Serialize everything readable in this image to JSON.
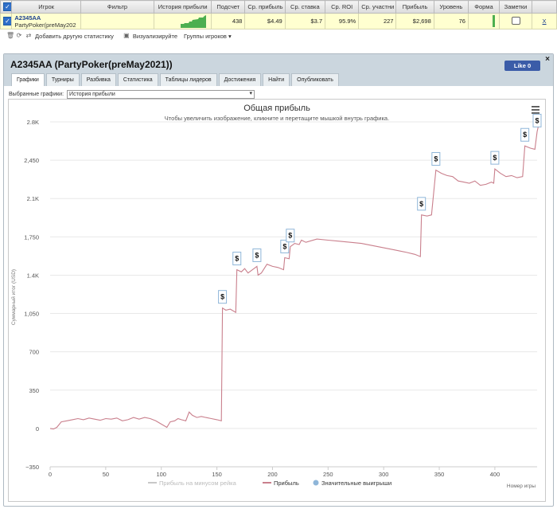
{
  "table": {
    "headers": [
      "Игрок",
      "Фильтр",
      "История прибыли",
      "Подсчет",
      "Ср. прибыль",
      "Ср. ставка",
      "Ср. ROI",
      "Ср. участни",
      "Прибыль",
      "Уровень",
      "Форма",
      "Заметки"
    ],
    "row": {
      "player": "A2345AA",
      "site": "PartyPoker(preMay202",
      "count": "438",
      "avg_profit": "$4.49",
      "avg_stake": "$3.7",
      "avg_roi": "95.9%",
      "avg_entrants": "227",
      "profit": "$2,698",
      "level": "76",
      "remove": "X"
    }
  },
  "toolbar": {
    "add_stat": "Добавить другую статистику",
    "visualize": "Визуализируйте",
    "groups": "Группы игроков"
  },
  "panel": {
    "title": "A2345AA (PartyPoker(preMay2021))",
    "like": "Like 0",
    "close": "×",
    "tabs": [
      "Графики",
      "Турниры",
      "Разбивка",
      "Статистика",
      "Таблицы лидеров",
      "Достижения",
      "Найти",
      "Опубликовать"
    ],
    "selected_label": "Выбранные графики:",
    "selected_value": "История прибыли"
  },
  "chart_data": {
    "type": "line",
    "title": "Общая прибыль",
    "subtitle": "Чтобы увеличить изображение, кликните и перетащите мышкой внутрь графика.",
    "xlabel": "Номер игры",
    "ylabel": "Суммарный итог (USD)",
    "xlim": [
      0,
      438
    ],
    "ylim": [
      -350,
      2800
    ],
    "x_ticks": [
      0,
      50,
      100,
      150,
      200,
      250,
      300,
      350,
      400
    ],
    "y_ticks": [
      -350,
      0,
      350,
      700,
      1050,
      1400,
      1750,
      2100,
      2450,
      2800
    ],
    "y_tick_labels": [
      "−350",
      "0",
      "350",
      "700",
      "1,050",
      "1.4K",
      "1,750",
      "2.1K",
      "2,450",
      "2.8K"
    ],
    "legend": [
      "Прибыль на минусом рейка",
      "Прибыль",
      "Значительные выигрыши"
    ],
    "legend_position": "bottom",
    "series": [
      {
        "name": "Прибыль",
        "color": "#c97f8c",
        "points": [
          [
            0,
            0
          ],
          [
            3,
            -5
          ],
          [
            6,
            10
          ],
          [
            10,
            60
          ],
          [
            15,
            70
          ],
          [
            20,
            80
          ],
          [
            25,
            90
          ],
          [
            30,
            80
          ],
          [
            35,
            95
          ],
          [
            40,
            85
          ],
          [
            45,
            75
          ],
          [
            50,
            90
          ],
          [
            55,
            85
          ],
          [
            60,
            95
          ],
          [
            65,
            70
          ],
          [
            70,
            80
          ],
          [
            75,
            100
          ],
          [
            80,
            85
          ],
          [
            85,
            100
          ],
          [
            90,
            90
          ],
          [
            95,
            70
          ],
          [
            100,
            40
          ],
          [
            105,
            10
          ],
          [
            108,
            60
          ],
          [
            112,
            70
          ],
          [
            115,
            90
          ],
          [
            118,
            80
          ],
          [
            122,
            70
          ],
          [
            125,
            150
          ],
          [
            128,
            120
          ],
          [
            132,
            100
          ],
          [
            136,
            110
          ],
          [
            140,
            100
          ],
          [
            145,
            90
          ],
          [
            150,
            80
          ],
          [
            154,
            70
          ],
          [
            155,
            1100
          ],
          [
            158,
            1080
          ],
          [
            162,
            1090
          ],
          [
            167,
            1060
          ],
          [
            168,
            1450
          ],
          [
            172,
            1430
          ],
          [
            175,
            1460
          ],
          [
            178,
            1420
          ],
          [
            182,
            1450
          ],
          [
            186,
            1480
          ],
          [
            187,
            1400
          ],
          [
            190,
            1420
          ],
          [
            195,
            1500
          ],
          [
            200,
            1480
          ],
          [
            205,
            1470
          ],
          [
            210,
            1450
          ],
          [
            211,
            1560
          ],
          [
            215,
            1550
          ],
          [
            216,
            1660
          ],
          [
            220,
            1690
          ],
          [
            224,
            1680
          ],
          [
            226,
            1720
          ],
          [
            230,
            1700
          ],
          [
            240,
            1730
          ],
          [
            250,
            1720
          ],
          [
            260,
            1710
          ],
          [
            270,
            1700
          ],
          [
            280,
            1690
          ],
          [
            290,
            1670
          ],
          [
            300,
            1650
          ],
          [
            310,
            1630
          ],
          [
            320,
            1610
          ],
          [
            328,
            1590
          ],
          [
            333,
            1570
          ],
          [
            334,
            1950
          ],
          [
            339,
            1940
          ],
          [
            343,
            1950
          ],
          [
            347,
            2360
          ],
          [
            352,
            2330
          ],
          [
            357,
            2310
          ],
          [
            362,
            2300
          ],
          [
            367,
            2260
          ],
          [
            372,
            2250
          ],
          [
            377,
            2240
          ],
          [
            382,
            2260
          ],
          [
            387,
            2220
          ],
          [
            392,
            2230
          ],
          [
            397,
            2250
          ],
          [
            399,
            2240
          ],
          [
            400,
            2370
          ],
          [
            405,
            2330
          ],
          [
            410,
            2300
          ],
          [
            415,
            2310
          ],
          [
            420,
            2290
          ],
          [
            425,
            2300
          ],
          [
            427,
            2580
          ],
          [
            432,
            2560
          ],
          [
            436,
            2550
          ],
          [
            438,
            2710
          ],
          [
            440,
            2800
          ]
        ]
      }
    ],
    "big_wins": [
      [
        155,
        1100
      ],
      [
        168,
        1450
      ],
      [
        186,
        1480
      ],
      [
        211,
        1560
      ],
      [
        216,
        1660
      ],
      [
        334,
        1950
      ],
      [
        347,
        2360
      ],
      [
        400,
        2370
      ],
      [
        427,
        2580
      ],
      [
        438,
        2710
      ]
    ],
    "big_win_symbol": "$",
    "colors": {
      "profit": "#c97f8c",
      "rake": "#c8c8c8",
      "bigwin": "#8fb6d9",
      "grid": "#e8e8e8"
    }
  }
}
